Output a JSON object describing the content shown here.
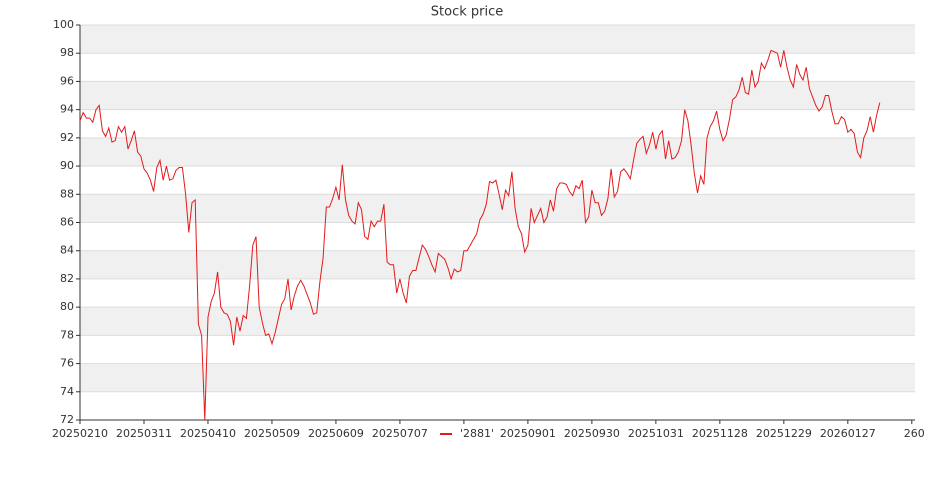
{
  "chart_data": {
    "type": "line",
    "title": "Stock price",
    "series": [
      {
        "name": "'2881'",
        "color": "#e41a1c",
        "values": [
          93.2,
          93.8,
          93.4,
          93.4,
          93.1,
          94.0,
          94.3,
          92.5,
          92.1,
          92.7,
          91.7,
          91.8,
          92.8,
          92.4,
          92.8,
          91.2,
          91.8,
          92.5,
          91.0,
          90.7,
          89.8,
          89.5,
          89.0,
          88.2,
          89.9,
          90.4,
          89.0,
          90.0,
          89.0,
          89.1,
          89.7,
          89.9,
          89.9,
          88.0,
          85.3,
          87.4,
          87.6,
          78.8,
          78.0,
          72.0,
          79.3,
          80.4,
          81.0,
          82.5,
          80.0,
          79.6,
          79.5,
          79.0,
          77.3,
          79.3,
          78.3,
          79.4,
          79.2,
          81.5,
          84.4,
          85.0,
          80.0,
          78.9,
          78.0,
          78.1,
          77.4,
          78.2,
          79.2,
          80.2,
          80.6,
          82.0,
          79.8,
          80.8,
          81.5,
          81.9,
          81.5,
          80.9,
          80.3,
          79.5,
          79.6,
          81.8,
          83.5,
          87.1,
          87.1,
          87.7,
          88.5,
          87.6,
          90.1,
          87.6,
          86.5,
          86.1,
          85.9,
          87.4,
          86.9,
          85.0,
          84.8,
          86.1,
          85.7,
          86.1,
          86.1,
          87.3,
          83.2,
          83.0,
          83.0,
          81.0,
          82.0,
          81.0,
          80.3,
          82.2,
          82.6,
          82.6,
          83.5,
          84.4,
          84.1,
          83.6,
          83.0,
          82.5,
          83.8,
          83.6,
          83.4,
          82.8,
          82.0,
          82.7,
          82.5,
          82.6,
          84.0,
          84.0,
          84.4,
          84.8,
          85.2,
          86.2,
          86.6,
          87.3,
          88.9,
          88.8,
          89.0,
          88.0,
          86.9,
          88.3,
          87.9,
          89.6,
          87.0,
          85.7,
          85.2,
          83.9,
          84.4,
          87.0,
          86.0,
          86.5,
          87.0,
          86.0,
          86.4,
          87.6,
          86.8,
          88.4,
          88.8,
          88.8,
          88.7,
          88.2,
          87.9,
          88.6,
          88.4,
          89.0,
          86.0,
          86.4,
          88.3,
          87.4,
          87.4,
          86.5,
          86.8,
          87.7,
          89.8,
          87.8,
          88.2,
          89.6,
          89.8,
          89.5,
          89.1,
          90.4,
          91.6,
          91.9,
          92.1,
          90.9,
          91.5,
          92.4,
          91.2,
          92.2,
          92.5,
          90.5,
          91.8,
          90.5,
          90.6,
          91.0,
          91.8,
          94.0,
          93.2,
          91.5,
          89.5,
          88.1,
          89.3,
          88.7,
          92.0,
          92.8,
          93.2,
          93.9,
          92.6,
          91.8,
          92.2,
          93.3,
          94.7,
          94.9,
          95.4,
          96.3,
          95.2,
          95.1,
          96.8,
          95.6,
          96.0,
          97.3,
          96.9,
          97.5,
          98.2,
          98.1,
          98.0,
          97.0,
          98.2,
          97.0,
          96.1,
          95.6,
          97.2,
          96.5,
          96.1,
          97.0,
          95.5,
          94.9,
          94.3,
          93.9,
          94.2,
          95.0,
          95.0,
          93.9,
          93.0,
          93.0,
          93.5,
          93.3,
          92.4,
          92.6,
          92.3,
          91.0,
          90.6,
          92.0,
          92.5,
          93.5,
          92.4,
          93.6,
          94.5
        ]
      }
    ],
    "xlim": [
      0,
      261
    ],
    "xticks": [
      {
        "value": 0,
        "label": "20250210"
      },
      {
        "value": 20,
        "label": "20250311"
      },
      {
        "value": 40,
        "label": "20250410"
      },
      {
        "value": 60,
        "label": "20250509"
      },
      {
        "value": 80,
        "label": "20250609"
      },
      {
        "value": 100,
        "label": "20250707"
      },
      {
        "value": 120,
        "label": null
      },
      {
        "value": 140,
        "label": "20250901"
      },
      {
        "value": 160,
        "label": "20250930"
      },
      {
        "value": 180,
        "label": "20251031"
      },
      {
        "value": 200,
        "label": "20251128"
      },
      {
        "value": 220,
        "label": "20251229"
      },
      {
        "value": 240,
        "label": "20260127"
      },
      {
        "value": 260,
        "label": "260"
      }
    ],
    "ylim": [
      72,
      100
    ],
    "yticks": [
      72,
      74,
      76,
      78,
      80,
      82,
      84,
      86,
      88,
      90,
      92,
      94,
      96,
      98,
      100
    ],
    "grid": true,
    "bands": true,
    "legend": "bottom"
  }
}
